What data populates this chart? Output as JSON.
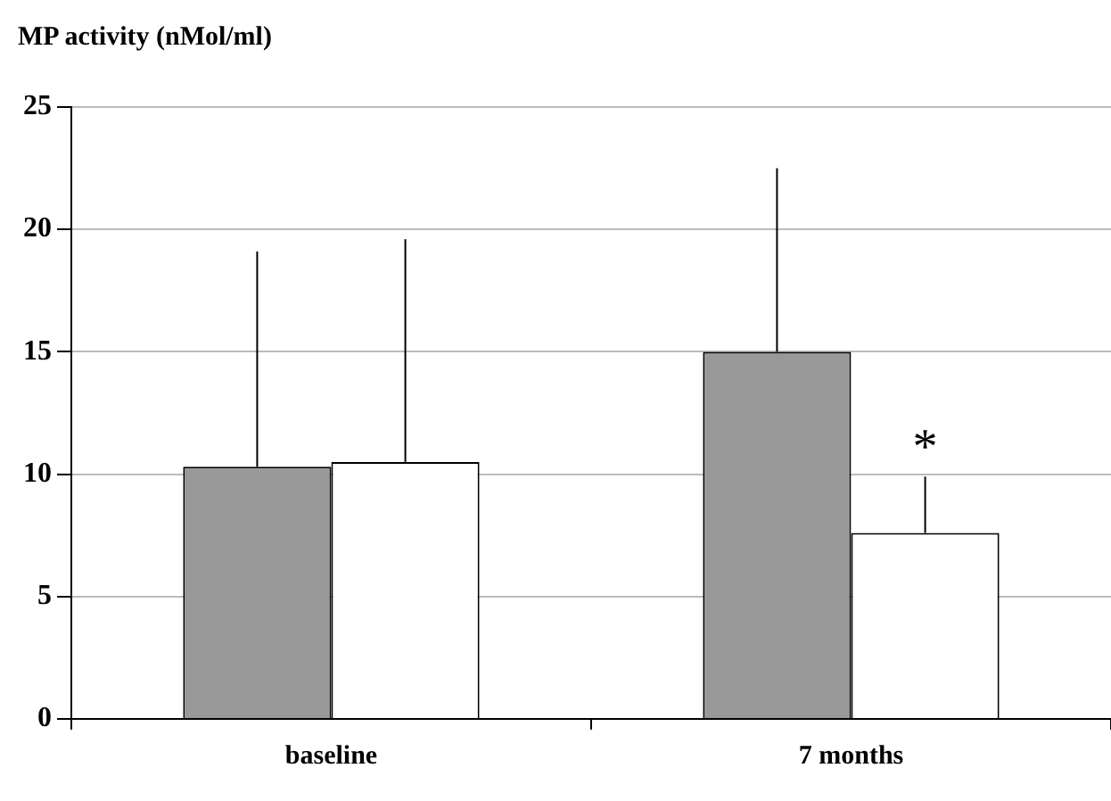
{
  "chart_data": {
    "type": "bar",
    "title": "MP activity (nMol/ml)",
    "categories": [
      "baseline",
      "7 months"
    ],
    "series": [
      {
        "color": "#999999",
        "values": [
          10.3,
          15.0
        ],
        "errors": [
          [
            10.3,
            19.1
          ],
          [
            15.0,
            22.5
          ]
        ]
      },
      {
        "color": "#ffffff",
        "values": [
          10.5,
          7.6
        ],
        "errors": [
          [
            10.5,
            19.6
          ],
          [
            7.6,
            9.9
          ]
        ]
      }
    ],
    "ylim": [
      0,
      25
    ],
    "yticks": [
      0,
      5,
      10,
      15,
      20,
      25
    ],
    "grid": "y",
    "legend": false,
    "annotations": [
      {
        "text": "*",
        "x": "7 months",
        "y": 11
      }
    ]
  }
}
